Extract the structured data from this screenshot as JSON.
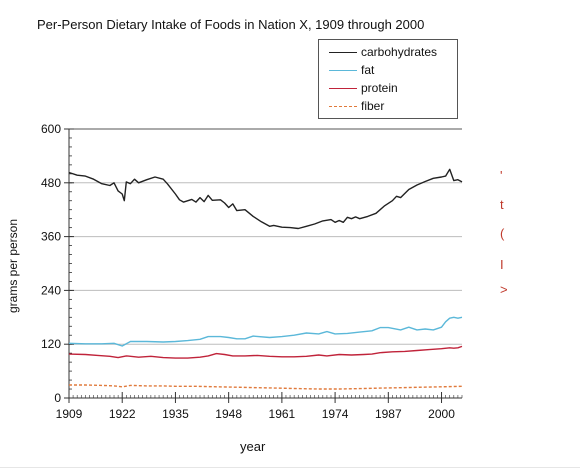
{
  "chart_data": {
    "type": "line",
    "title": "Per-Person Dietary Intake of Foods in Nation X, 1909 through 2000",
    "xlabel": "year",
    "ylabel": "grams per person",
    "xlim": [
      1909,
      2005
    ],
    "ylim": [
      0,
      600
    ],
    "x_ticks": [
      1909,
      1922,
      1935,
      1948,
      1961,
      1974,
      1987,
      2000
    ],
    "y_ticks": [
      0,
      120,
      240,
      360,
      480,
      600
    ],
    "grid": "horizontal",
    "legend_position": "top-right",
    "series": [
      {
        "name": "carbohydrates",
        "color": "#222222",
        "dash": "solid",
        "points": [
          [
            1909,
            503
          ],
          [
            1911,
            497
          ],
          [
            1913,
            495
          ],
          [
            1915,
            488
          ],
          [
            1917,
            478
          ],
          [
            1919,
            474
          ],
          [
            1920,
            480
          ],
          [
            1921,
            462
          ],
          [
            1922,
            455
          ],
          [
            1922.5,
            440
          ],
          [
            1923,
            482
          ],
          [
            1924,
            478
          ],
          [
            1925,
            488
          ],
          [
            1926,
            480
          ],
          [
            1928,
            487
          ],
          [
            1930,
            493
          ],
          [
            1932,
            488
          ],
          [
            1933,
            478
          ],
          [
            1935,
            455
          ],
          [
            1936,
            442
          ],
          [
            1937,
            437
          ],
          [
            1939,
            443
          ],
          [
            1940,
            437
          ],
          [
            1941,
            447
          ],
          [
            1942,
            438
          ],
          [
            1943,
            452
          ],
          [
            1944,
            441
          ],
          [
            1946,
            442
          ],
          [
            1947,
            435
          ],
          [
            1948,
            425
          ],
          [
            1949,
            433
          ],
          [
            1950,
            418
          ],
          [
            1952,
            420
          ],
          [
            1954,
            405
          ],
          [
            1956,
            393
          ],
          [
            1958,
            383
          ],
          [
            1959,
            385
          ],
          [
            1961,
            381
          ],
          [
            1963,
            380
          ],
          [
            1965,
            378
          ],
          [
            1967,
            383
          ],
          [
            1969,
            388
          ],
          [
            1971,
            395
          ],
          [
            1973,
            398
          ],
          [
            1974,
            392
          ],
          [
            1975,
            396
          ],
          [
            1976,
            392
          ],
          [
            1977,
            403
          ],
          [
            1978,
            400
          ],
          [
            1979,
            404
          ],
          [
            1980,
            400
          ],
          [
            1982,
            405
          ],
          [
            1984,
            412
          ],
          [
            1986,
            428
          ],
          [
            1988,
            440
          ],
          [
            1989,
            450
          ],
          [
            1990,
            447
          ],
          [
            1992,
            465
          ],
          [
            1994,
            475
          ],
          [
            1996,
            483
          ],
          [
            1998,
            490
          ],
          [
            2000,
            493
          ],
          [
            2001,
            495
          ],
          [
            2002,
            510
          ],
          [
            2003,
            485
          ],
          [
            2004,
            487
          ],
          [
            2005,
            482
          ]
        ]
      },
      {
        "name": "fat",
        "color": "#5bb8d9",
        "dash": "solid",
        "points": [
          [
            1909,
            122
          ],
          [
            1913,
            121
          ],
          [
            1917,
            121
          ],
          [
            1920,
            122
          ],
          [
            1922,
            116
          ],
          [
            1924,
            126
          ],
          [
            1928,
            126
          ],
          [
            1932,
            125
          ],
          [
            1935,
            126
          ],
          [
            1938,
            128
          ],
          [
            1941,
            131
          ],
          [
            1943,
            137
          ],
          [
            1946,
            137
          ],
          [
            1948,
            135
          ],
          [
            1950,
            132
          ],
          [
            1952,
            132
          ],
          [
            1954,
            138
          ],
          [
            1958,
            135
          ],
          [
            1961,
            137
          ],
          [
            1964,
            140
          ],
          [
            1967,
            145
          ],
          [
            1970,
            143
          ],
          [
            1972,
            148
          ],
          [
            1974,
            143
          ],
          [
            1977,
            144
          ],
          [
            1980,
            147
          ],
          [
            1983,
            150
          ],
          [
            1985,
            157
          ],
          [
            1987,
            157
          ],
          [
            1990,
            152
          ],
          [
            1992,
            158
          ],
          [
            1994,
            152
          ],
          [
            1996,
            154
          ],
          [
            1998,
            152
          ],
          [
            2000,
            158
          ],
          [
            2001,
            170
          ],
          [
            2002,
            178
          ],
          [
            2003,
            180
          ],
          [
            2004,
            178
          ],
          [
            2005,
            180
          ]
        ]
      },
      {
        "name": "protein",
        "color": "#c0233a",
        "dash": "solid",
        "points": [
          [
            1909,
            98
          ],
          [
            1913,
            97
          ],
          [
            1916,
            95
          ],
          [
            1919,
            93
          ],
          [
            1921,
            90
          ],
          [
            1923,
            94
          ],
          [
            1926,
            91
          ],
          [
            1929,
            93
          ],
          [
            1932,
            90
          ],
          [
            1935,
            89
          ],
          [
            1938,
            89
          ],
          [
            1941,
            91
          ],
          [
            1943,
            94
          ],
          [
            1945,
            99
          ],
          [
            1947,
            97
          ],
          [
            1949,
            94
          ],
          [
            1952,
            94
          ],
          [
            1955,
            95
          ],
          [
            1958,
            93
          ],
          [
            1961,
            92
          ],
          [
            1964,
            92
          ],
          [
            1967,
            93
          ],
          [
            1970,
            96
          ],
          [
            1972,
            94
          ],
          [
            1975,
            97
          ],
          [
            1978,
            96
          ],
          [
            1981,
            97
          ],
          [
            1983,
            98
          ],
          [
            1985,
            101
          ],
          [
            1988,
            103
          ],
          [
            1991,
            104
          ],
          [
            1994,
            106
          ],
          [
            1997,
            108
          ],
          [
            2000,
            110
          ],
          [
            2002,
            112
          ],
          [
            2003,
            111
          ],
          [
            2004,
            112
          ],
          [
            2005,
            115
          ]
        ]
      },
      {
        "name": "fiber",
        "color": "#e07a3c",
        "dash": "dashed",
        "points": [
          [
            1909,
            29
          ],
          [
            1913,
            29
          ],
          [
            1917,
            28
          ],
          [
            1920,
            27
          ],
          [
            1922,
            25
          ],
          [
            1924,
            28
          ],
          [
            1928,
            27
          ],
          [
            1932,
            27
          ],
          [
            1935,
            26
          ],
          [
            1940,
            26
          ],
          [
            1945,
            25
          ],
          [
            1950,
            24
          ],
          [
            1955,
            23
          ],
          [
            1960,
            22
          ],
          [
            1965,
            21
          ],
          [
            1970,
            20
          ],
          [
            1975,
            20
          ],
          [
            1980,
            21
          ],
          [
            1985,
            22
          ],
          [
            1990,
            23
          ],
          [
            1995,
            24
          ],
          [
            2000,
            25
          ],
          [
            2005,
            26
          ]
        ]
      }
    ]
  },
  "side_marks": [
    "'",
    "t",
    "(",
    "I",
    ">"
  ]
}
